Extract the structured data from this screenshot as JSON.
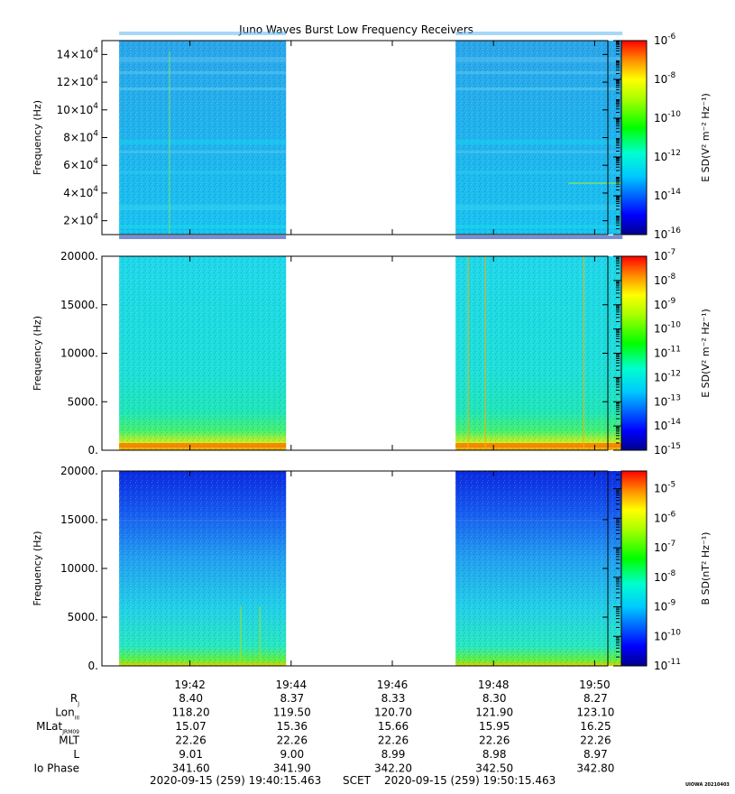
{
  "chart_data": {
    "title": "Juno Waves Burst Low Frequency Receivers",
    "type": "heatmap",
    "time_axis": {
      "ticks": [
        "19:42",
        "19:44",
        "19:46",
        "19:48",
        "19:50"
      ],
      "tick_minutes": [
        42,
        44,
        46,
        48,
        50
      ],
      "range_minutes": [
        40.26,
        50.26
      ],
      "data_segments_minutes": [
        [
          40.6,
          43.9
        ],
        [
          47.25,
          50.55
        ]
      ]
    },
    "panels": [
      {
        "ylabel": "Frequency (Hz)",
        "yticks": [
          {
            "value": 20000,
            "label": "2×10",
            "exp": "4"
          },
          {
            "value": 40000,
            "label": "4×10",
            "exp": "4"
          },
          {
            "value": 60000,
            "label": "6×10",
            "exp": "4"
          },
          {
            "value": 80000,
            "label": "8×10",
            "exp": "4"
          },
          {
            "value": 100000,
            "label": "10×10",
            "exp": "4"
          },
          {
            "value": 120000,
            "label": "12×10",
            "exp": "4"
          },
          {
            "value": 140000,
            "label": "14×10",
            "exp": "4"
          }
        ],
        "ylim": [
          10000,
          150000
        ],
        "colorbar": {
          "label": "E SD(V² m⁻² Hz⁻¹)",
          "ticks": [
            {
              "base": "10",
              "exp": "-6"
            },
            {
              "base": "10",
              "exp": "-8"
            },
            {
              "base": "10",
              "exp": "-10"
            },
            {
              "base": "10",
              "exp": "-12"
            },
            {
              "base": "10",
              "exp": "-14"
            },
            {
              "base": "10",
              "exp": "-16"
            }
          ],
          "range_log10": [
            -16,
            -6
          ]
        }
      },
      {
        "ylabel": "Frequency (Hz)",
        "yticks": [
          {
            "value": 0,
            "label": "0."
          },
          {
            "value": 5000,
            "label": "5000."
          },
          {
            "value": 10000,
            "label": "10000."
          },
          {
            "value": 15000,
            "label": "15000."
          },
          {
            "value": 20000,
            "label": "20000."
          }
        ],
        "ylim": [
          0,
          20000
        ],
        "colorbar": {
          "label": "E SD(V² m⁻² Hz⁻¹)",
          "ticks": [
            {
              "base": "10",
              "exp": "-7"
            },
            {
              "base": "10",
              "exp": "-8"
            },
            {
              "base": "10",
              "exp": "-9"
            },
            {
              "base": "10",
              "exp": "-10"
            },
            {
              "base": "10",
              "exp": "-11"
            },
            {
              "base": "10",
              "exp": "-12"
            },
            {
              "base": "10",
              "exp": "-13"
            },
            {
              "base": "10",
              "exp": "-14"
            },
            {
              "base": "10",
              "exp": "-15"
            }
          ],
          "range_log10": [
            -15,
            -7
          ]
        }
      },
      {
        "ylabel": "Frequency (Hz)",
        "yticks": [
          {
            "value": 0,
            "label": "0."
          },
          {
            "value": 5000,
            "label": "5000."
          },
          {
            "value": 10000,
            "label": "10000."
          },
          {
            "value": 15000,
            "label": "15000."
          },
          {
            "value": 20000,
            "label": "20000."
          }
        ],
        "ylim": [
          0,
          20000
        ],
        "colorbar": {
          "label": "B SD(nT² Hz⁻¹)",
          "ticks": [
            {
              "base": "10",
              "exp": "-5"
            },
            {
              "base": "10",
              "exp": "-6"
            },
            {
              "base": "10",
              "exp": "-7"
            },
            {
              "base": "10",
              "exp": "-8"
            },
            {
              "base": "10",
              "exp": "-9"
            },
            {
              "base": "10",
              "exp": "-10"
            },
            {
              "base": "10",
              "exp": "-11"
            }
          ],
          "range_log10": [
            -11,
            -4.4
          ]
        }
      }
    ],
    "ephemeris": {
      "rows": [
        {
          "label": "R",
          "sub": "J",
          "values": [
            "8.40",
            "8.37",
            "8.33",
            "8.30",
            "8.27"
          ]
        },
        {
          "label": "Lon",
          "sub": "III",
          "values": [
            "118.20",
            "119.50",
            "120.70",
            "121.90",
            "123.10"
          ]
        },
        {
          "label": "MLat",
          "sub": "JRM09",
          "values": [
            "15.07",
            "15.36",
            "15.66",
            "15.95",
            "16.25"
          ]
        },
        {
          "label": "MLT",
          "sub": "",
          "values": [
            "22.26",
            "22.26",
            "22.26",
            "22.26",
            "22.26"
          ]
        },
        {
          "label": "L",
          "sub": "",
          "values": [
            "9.01",
            "9.00",
            "8.99",
            "8.98",
            "8.97"
          ]
        },
        {
          "label": "Io Phase",
          "sub": "",
          "values": [
            "341.60",
            "341.90",
            "342.20",
            "342.50",
            "342.80"
          ]
        }
      ]
    },
    "footer": {
      "start": "2020-09-15 (259) 19:40:15.463",
      "frame": "SCET",
      "end": "2020-09-15 (259) 19:50:15.463",
      "credit": "UIOWA 20210403"
    }
  }
}
